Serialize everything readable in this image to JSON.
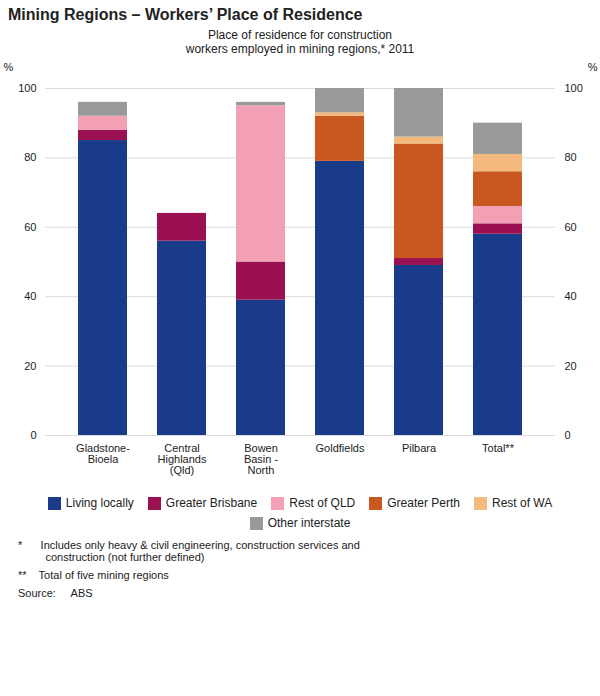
{
  "chart_data": {
    "type": "bar",
    "stacked": true,
    "title": "Mining Regions – Workers’ Place of Residence",
    "subtitle": "Place of residence for construction\nworkers employed in mining regions,* 2011",
    "categories": [
      "Gladstone-\nBioela",
      "Central\nHighlands\n(Qld)",
      "Bowen\nBasin -\nNorth",
      "Goldfields",
      "Pilbara",
      "Total**"
    ],
    "series": [
      {
        "name": "Living locally",
        "color": "#1a3a8a",
        "values": [
          85,
          56,
          39,
          79,
          49,
          58
        ]
      },
      {
        "name": "Greater Brisbane",
        "color": "#9b1050",
        "values": [
          3,
          8,
          11,
          0,
          2,
          3
        ]
      },
      {
        "name": "Rest of QLD",
        "color": "#f4a0b4",
        "values": [
          4,
          0,
          45,
          0,
          0,
          5
        ]
      },
      {
        "name": "Greater Perth",
        "color": "#c85820",
        "values": [
          0,
          0,
          0,
          13,
          33,
          10
        ]
      },
      {
        "name": "Rest of WA",
        "color": "#f4b97c",
        "values": [
          0,
          0,
          0,
          1,
          2,
          5
        ]
      },
      {
        "name": "Other interstate",
        "color": "#999999",
        "values": [
          4,
          0,
          1,
          7,
          14,
          9
        ]
      }
    ],
    "y_label": "%",
    "ylim": [
      0,
      100
    ],
    "yticks": [
      0,
      20,
      40,
      60,
      80,
      100
    ],
    "y2_label": "%",
    "y2lim": [
      0,
      100
    ],
    "y2ticks": [
      0,
      20,
      40,
      60,
      80,
      100
    ],
    "grid": true,
    "legend": "bottom",
    "footnotes": [
      "*      Includes only heavy & civil engineering, construction services and\n         construction (not further defined)",
      "**    Total of five mining regions"
    ],
    "source": "Source:     ABS"
  }
}
